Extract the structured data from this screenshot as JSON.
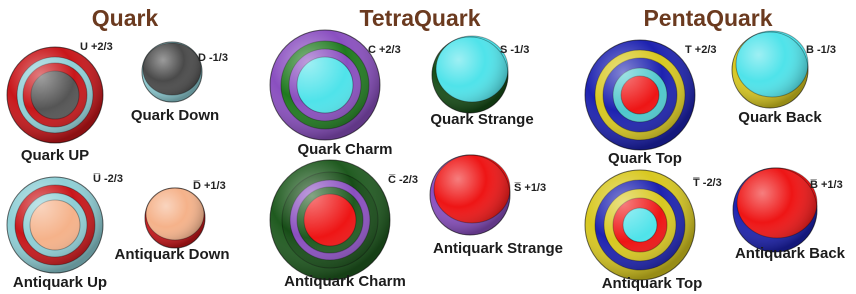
{
  "groups": [
    {
      "title": "Quark",
      "items": [
        {
          "charge": "U +2/3",
          "name": "Quark UP"
        },
        {
          "charge": "D -1/3",
          "name": "Quark Down"
        },
        {
          "charge": "U̅ -2/3",
          "name": "Antiquark  Up"
        },
        {
          "charge": "D̅ +1/3",
          "name": "Antiquark  Down"
        }
      ]
    },
    {
      "title": "TetraQuark",
      "items": [
        {
          "charge": "C +2/3",
          "name": "Quark Charm"
        },
        {
          "charge": "S -1/3",
          "name": "Quark Strange"
        },
        {
          "charge": "C̅ -2/3",
          "name": "Antiquark  Charm"
        },
        {
          "charge": "S̅ +1/3",
          "name": "Antiquark  Strange"
        }
      ]
    },
    {
      "title": "PentaQuark",
      "items": [
        {
          "charge": "T +2/3",
          "name": "Quark Top"
        },
        {
          "charge": "B -1/3",
          "name": "Quark Back"
        },
        {
          "charge": "T̅ -2/3",
          "name": "Antiquark  Top"
        },
        {
          "charge": "B̅ +1/3",
          "name": "Antiquark  Back"
        }
      ]
    }
  ]
}
